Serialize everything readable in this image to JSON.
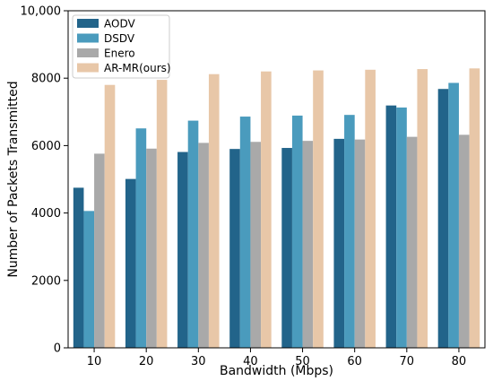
{
  "chart_data": {
    "type": "bar",
    "title": "",
    "xlabel": "Bandwidth (Mbps)",
    "ylabel": "Number of Packets Transmitted",
    "categories": [
      "10",
      "20",
      "30",
      "40",
      "50",
      "60",
      "70",
      "80"
    ],
    "ylim": [
      0,
      10000
    ],
    "yticks": [
      0,
      2000,
      4000,
      6000,
      8000,
      10000
    ],
    "ytick_labels": [
      "0",
      "2000",
      "4000",
      "6000",
      "8000",
      "10,000"
    ],
    "grid": false,
    "legend_position": "top-left",
    "series": [
      {
        "name": "AODV",
        "color": "#22648a",
        "values": [
          4750,
          5010,
          5810,
          5900,
          5930,
          6200,
          7190,
          7680
        ]
      },
      {
        "name": "DSDV",
        "color": "#4a9bbd",
        "values": [
          4060,
          6510,
          6740,
          6860,
          6890,
          6910,
          7130,
          7860
        ]
      },
      {
        "name": "Enero",
        "color": "#a9a9a9",
        "values": [
          5760,
          5910,
          6080,
          6110,
          6140,
          6180,
          6260,
          6320
        ]
      },
      {
        "name": "AR-MR(ours)",
        "color": "#e8c7a8",
        "values": [
          7800,
          7950,
          8120,
          8200,
          8230,
          8250,
          8270,
          8290
        ]
      }
    ]
  }
}
